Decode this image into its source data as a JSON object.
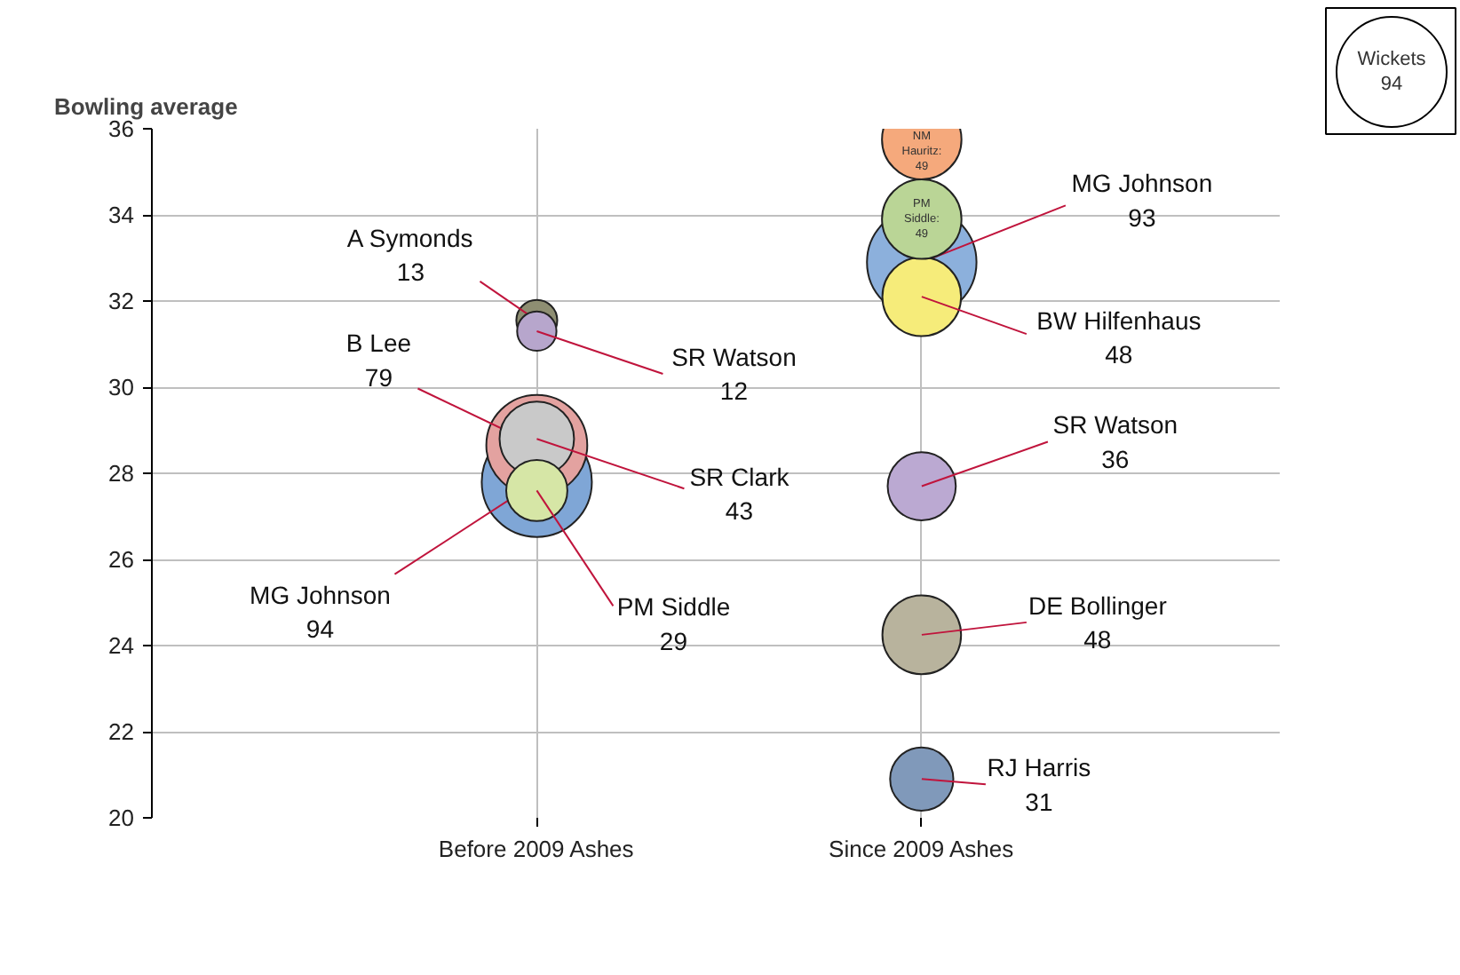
{
  "chart_data": {
    "type": "bubble",
    "ylabel": "Bowling average",
    "legend_title": "Wickets",
    "size_legend": [
      94
    ],
    "categories": [
      "Before 2009 Ashes",
      "Since 2009 Ashes"
    ],
    "ylim": [
      20,
      36
    ],
    "yticks": [
      20,
      22,
      24,
      26,
      28,
      30,
      32,
      34,
      36
    ],
    "grid": true,
    "series": [
      {
        "name": "MG Johnson",
        "color": "#7fa6d6",
        "x": [
          "Before 2009 Ashes"
        ],
        "values": [
          27.8
        ],
        "sizes": [
          94
        ]
      },
      {
        "name": "B Lee",
        "color": "#e3a2a0",
        "x": [
          "Before 2009 Ashes"
        ],
        "values": [
          28.65
        ],
        "sizes": [
          79
        ]
      },
      {
        "name": "SR Clark",
        "color": "#c9c9c9",
        "x": [
          "Before 2009 Ashes"
        ],
        "values": [
          28.8
        ],
        "sizes": [
          43
        ]
      },
      {
        "name": "PM Siddle",
        "color": "#d6e6a6",
        "x": [
          "Before 2009 Ashes"
        ],
        "values": [
          27.6
        ],
        "sizes": [
          29
        ]
      },
      {
        "name": "A Symonds",
        "color": "#8e8e72",
        "x": [
          "Before 2009 Ashes"
        ],
        "values": [
          31.55
        ],
        "sizes": [
          13
        ]
      },
      {
        "name": "SR Watson",
        "color": "#b7a6cc",
        "x": [
          "Before 2009 Ashes"
        ],
        "values": [
          31.3
        ],
        "sizes": [
          12
        ]
      },
      {
        "name": "MG Johnson",
        "color": "#8cb0dc",
        "x": [
          "Since 2009 Ashes"
        ],
        "values": [
          32.9
        ],
        "sizes": [
          93
        ]
      },
      {
        "name": "BW Hilfenhaus",
        "color": "#f6ec7a",
        "x": [
          "Since 2009 Ashes"
        ],
        "values": [
          32.1
        ],
        "sizes": [
          48
        ]
      },
      {
        "name": "PM Siddle:",
        "color": "#bad596",
        "x": [
          "Since 2009 Ashes"
        ],
        "values": [
          33.9
        ],
        "sizes": [
          49
        ]
      },
      {
        "name": "NM Hauritz:",
        "color": "#f5a97c",
        "x": [
          "Since 2009 Ashes"
        ],
        "values": [
          35.75
        ],
        "sizes": [
          49
        ]
      },
      {
        "name": "SR Watson",
        "color": "#bba9d2",
        "x": [
          "Since 2009 Ashes"
        ],
        "values": [
          27.7
        ],
        "sizes": [
          36
        ]
      },
      {
        "name": "DE Bollinger",
        "color": "#b8b39d",
        "x": [
          "Since 2009 Ashes"
        ],
        "values": [
          24.25
        ],
        "sizes": [
          48
        ]
      },
      {
        "name": "RJ Harris",
        "color": "#8099ba",
        "x": [
          "Since 2009 Ashes"
        ],
        "values": [
          20.9
        ],
        "sizes": [
          31
        ]
      }
    ],
    "annotations": [
      "94",
      {
        "text": "79",
        "x": "Before 2009 Ashes",
        "y": 28.65
      },
      "43",
      "29",
      "13",
      "12",
      "93",
      "48",
      "49",
      "49",
      "36",
      "48",
      "31"
    ]
  }
}
